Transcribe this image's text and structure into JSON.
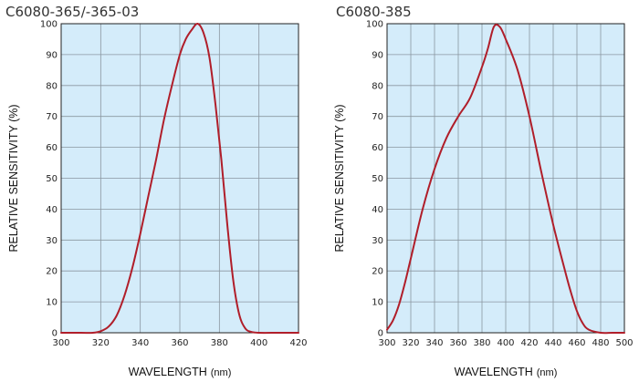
{
  "chart_data": [
    {
      "type": "line",
      "title": "C6080-365/-365-03",
      "xlabel": "WAVELENGTH",
      "xunit": "(nm)",
      "ylabel": "RELATIVE SENSITIVITY (%)",
      "xlim": [
        300,
        420
      ],
      "ylim": [
        0,
        100
      ],
      "xticks": [
        300,
        320,
        340,
        360,
        380,
        400,
        420
      ],
      "yticks": [
        0,
        10,
        20,
        30,
        40,
        50,
        60,
        70,
        80,
        90,
        100
      ],
      "grid": true,
      "plot_bg": "#d4ecfa",
      "line_color": "#b01e2a",
      "series": [
        {
          "x": [
            300,
            310,
            316,
            320,
            324,
            328,
            332,
            336,
            340,
            344,
            348,
            352,
            356,
            360,
            363,
            366,
            369,
            372,
            375,
            378,
            381,
            384,
            387,
            390,
            393,
            396,
            400,
            410,
            420
          ],
          "values": [
            0,
            0,
            0,
            0.5,
            2,
            5.5,
            12,
            21,
            32,
            44,
            56,
            69,
            80,
            90,
            95,
            98,
            100,
            97,
            89,
            74,
            56,
            35,
            17,
            6,
            1.5,
            0.3,
            0,
            0,
            0
          ]
        }
      ]
    },
    {
      "type": "line",
      "title": "C6080-385",
      "xlabel": "WAVELENGTH",
      "xunit": "(nm)",
      "ylabel": "RELATIVE SENSITIVITY (%)",
      "xlim": [
        300,
        500
      ],
      "ylim": [
        0,
        100
      ],
      "xticks": [
        300,
        320,
        340,
        360,
        380,
        400,
        420,
        440,
        460,
        480,
        500
      ],
      "yticks": [
        0,
        10,
        20,
        30,
        40,
        50,
        60,
        70,
        80,
        90,
        100
      ],
      "grid": true,
      "plot_bg": "#d4ecfa",
      "line_color": "#b01e2a",
      "series": [
        {
          "x": [
            300,
            305,
            310,
            315,
            320,
            330,
            340,
            350,
            360,
            370,
            380,
            385,
            390,
            395,
            400,
            410,
            420,
            430,
            440,
            450,
            455,
            460,
            465,
            470,
            480,
            490,
            500
          ],
          "values": [
            1,
            4,
            9,
            16,
            24,
            40,
            53,
            63,
            70,
            76,
            86,
            92,
            99,
            99,
            95,
            85,
            70,
            52,
            35,
            20,
            13,
            7,
            3,
            1,
            0,
            0,
            0
          ]
        }
      ]
    }
  ]
}
